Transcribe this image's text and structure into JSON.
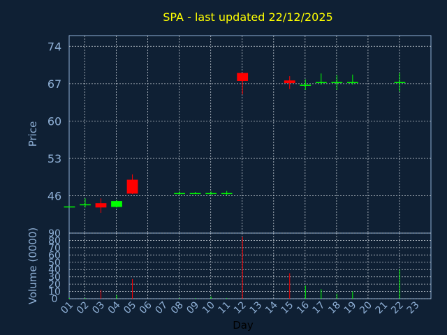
{
  "chart_data": {
    "type": "candlestick",
    "title": "SPA - last updated 22/12/2025",
    "xlabel": "Day",
    "price_panel": {
      "ylabel": "Price",
      "yticks": [
        46,
        53,
        60,
        67,
        74
      ],
      "ylim": [
        39,
        76
      ]
    },
    "volume_panel": {
      "ylabel": "Volume (0000)",
      "yticks": [
        0,
        10,
        20,
        30,
        40,
        50,
        60,
        70,
        80,
        90
      ],
      "ylim": [
        0,
        90
      ]
    },
    "x_labels": [
      "01",
      "02",
      "03",
      "04",
      "05",
      "06",
      "07",
      "08",
      "09",
      "10",
      "11",
      "12",
      "13",
      "14",
      "15",
      "16",
      "17",
      "18",
      "19",
      "20",
      "21",
      "22",
      "23"
    ],
    "grid": true,
    "candles": [
      {
        "day": "01",
        "open": 44.0,
        "close": 44.0,
        "high": 44.0,
        "low": 44.0,
        "volume": 1,
        "color": "#00ff00"
      },
      {
        "day": "02",
        "open": 44.4,
        "close": 44.4,
        "high": 45.5,
        "low": 43.8,
        "volume": 1,
        "color": "#00ff00"
      },
      {
        "day": "03",
        "open": 44.6,
        "close": 43.8,
        "high": 45.5,
        "low": 42.8,
        "volume": 12,
        "color": "#ff0000"
      },
      {
        "day": "04",
        "open": 43.9,
        "close": 45.0,
        "high": 45.2,
        "low": 43.8,
        "volume": 5,
        "color": "#00ff00"
      },
      {
        "day": "05",
        "open": 49.0,
        "close": 46.4,
        "high": 50.0,
        "low": 46.3,
        "volume": 27,
        "color": "#ff0000"
      },
      {
        "day": "08",
        "open": 46.5,
        "close": 46.5,
        "high": 46.8,
        "low": 46.2,
        "volume": 1,
        "color": "#00ff00"
      },
      {
        "day": "09",
        "open": 46.5,
        "close": 46.5,
        "high": 46.7,
        "low": 46.3,
        "volume": 1,
        "color": "#00ff00"
      },
      {
        "day": "10",
        "open": 46.5,
        "close": 46.5,
        "high": 46.8,
        "low": 46.2,
        "volume": 3,
        "color": "#00ff00"
      },
      {
        "day": "11",
        "open": 46.5,
        "close": 46.5,
        "high": 46.9,
        "low": 46.1,
        "volume": 1,
        "color": "#00ff00"
      },
      {
        "day": "12",
        "open": 69.0,
        "close": 67.5,
        "high": 69.0,
        "low": 65.0,
        "volume": 85,
        "color": "#ff0000"
      },
      {
        "day": "15",
        "open": 67.6,
        "close": 67.1,
        "high": 68.4,
        "low": 66.0,
        "volume": 35,
        "color": "#ff0000"
      },
      {
        "day": "16",
        "open": 66.8,
        "close": 66.8,
        "high": 67.8,
        "low": 65.8,
        "volume": 18,
        "color": "#00ff00"
      },
      {
        "day": "17",
        "open": 67.3,
        "close": 67.3,
        "high": 68.9,
        "low": 66.8,
        "volume": 13,
        "color": "#00ff00"
      },
      {
        "day": "18",
        "open": 67.3,
        "close": 67.3,
        "high": 68.6,
        "low": 65.8,
        "volume": 7,
        "color": "#00ff00"
      },
      {
        "day": "19",
        "open": 67.3,
        "close": 67.3,
        "high": 68.7,
        "low": 66.8,
        "volume": 10,
        "color": "#00ff00"
      },
      {
        "day": "22",
        "open": 67.3,
        "close": 67.3,
        "high": 69.0,
        "low": 65.5,
        "volume": 40,
        "color": "#00ff00"
      }
    ],
    "colors": {
      "background": "#0f2034",
      "axis": "#8fb0d6",
      "grid": "#c0c8d0",
      "title": "#ffff00",
      "up": "#00ff00",
      "down": "#ff0000"
    }
  }
}
